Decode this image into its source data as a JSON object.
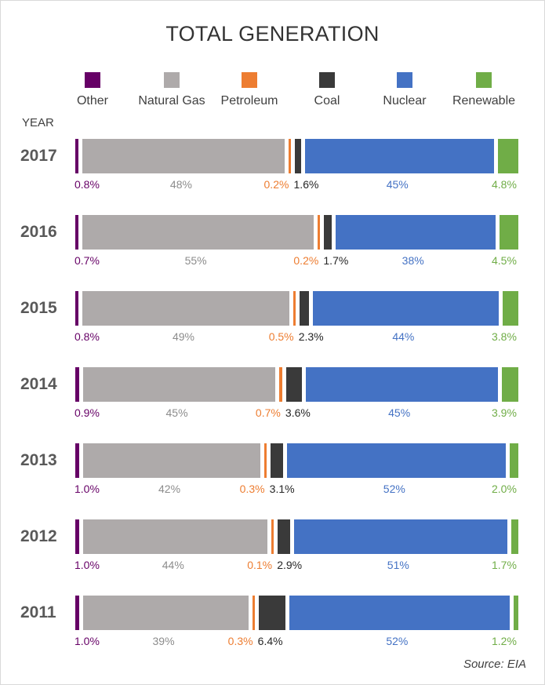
{
  "chart_data": {
    "type": "bar",
    "orientation": "horizontal",
    "stacked": true,
    "normalized": true,
    "title": "TOTAL GENERATION",
    "ylabel": "YEAR",
    "legend_position": "top",
    "categories": [
      "2017",
      "2016",
      "2015",
      "2014",
      "2013",
      "2012",
      "2011"
    ],
    "series": [
      {
        "name": "Other",
        "color": "#660066",
        "values": [
          0.8,
          0.7,
          0.8,
          0.9,
          1.0,
          1.0,
          1.0
        ],
        "labels": [
          "0.8%",
          "0.7%",
          "0.8%",
          "0.9%",
          "1.0%",
          "1.0%",
          "1.0%"
        ]
      },
      {
        "name": "Natural Gas",
        "color": "#aeaaaa",
        "values": [
          48,
          55,
          49,
          45,
          42,
          44,
          39
        ],
        "labels": [
          "48%",
          "55%",
          "49%",
          "45%",
          "42%",
          "44%",
          "39%"
        ]
      },
      {
        "name": "Petroleum",
        "color": "#ed7d31",
        "values": [
          0.2,
          0.2,
          0.5,
          0.7,
          0.3,
          0.1,
          0.3
        ],
        "labels": [
          "0.2%",
          "0.2%",
          "0.5%",
          "0.7%",
          "0.3%",
          "0.1%",
          "0.3%"
        ]
      },
      {
        "name": "Coal",
        "color": "#3a3a3a",
        "values": [
          1.6,
          1.7,
          2.3,
          3.6,
          3.1,
          2.9,
          6.4
        ],
        "labels": [
          "1.6%",
          "1.7%",
          "2.3%",
          "3.6%",
          "3.1%",
          "2.9%",
          "6.4%"
        ]
      },
      {
        "name": "Nuclear",
        "color": "#4472c4",
        "values": [
          45,
          38,
          44,
          45,
          52,
          51,
          52
        ],
        "labels": [
          "45%",
          "38%",
          "44%",
          "45%",
          "52%",
          "51%",
          "52%"
        ]
      },
      {
        "name": "Renewable",
        "color": "#70ad47",
        "values": [
          4.8,
          4.5,
          3.8,
          3.9,
          2.0,
          1.7,
          1.2
        ],
        "labels": [
          "4.8%",
          "4.5%",
          "3.8%",
          "3.9%",
          "2.0%",
          "1.7%",
          "1.2%"
        ]
      }
    ],
    "label_colors": [
      "#660066",
      "#8c8c8c",
      "#ed7d31",
      "#262626",
      "#4472c4",
      "#70ad47"
    ],
    "source": "Source: EIA"
  }
}
